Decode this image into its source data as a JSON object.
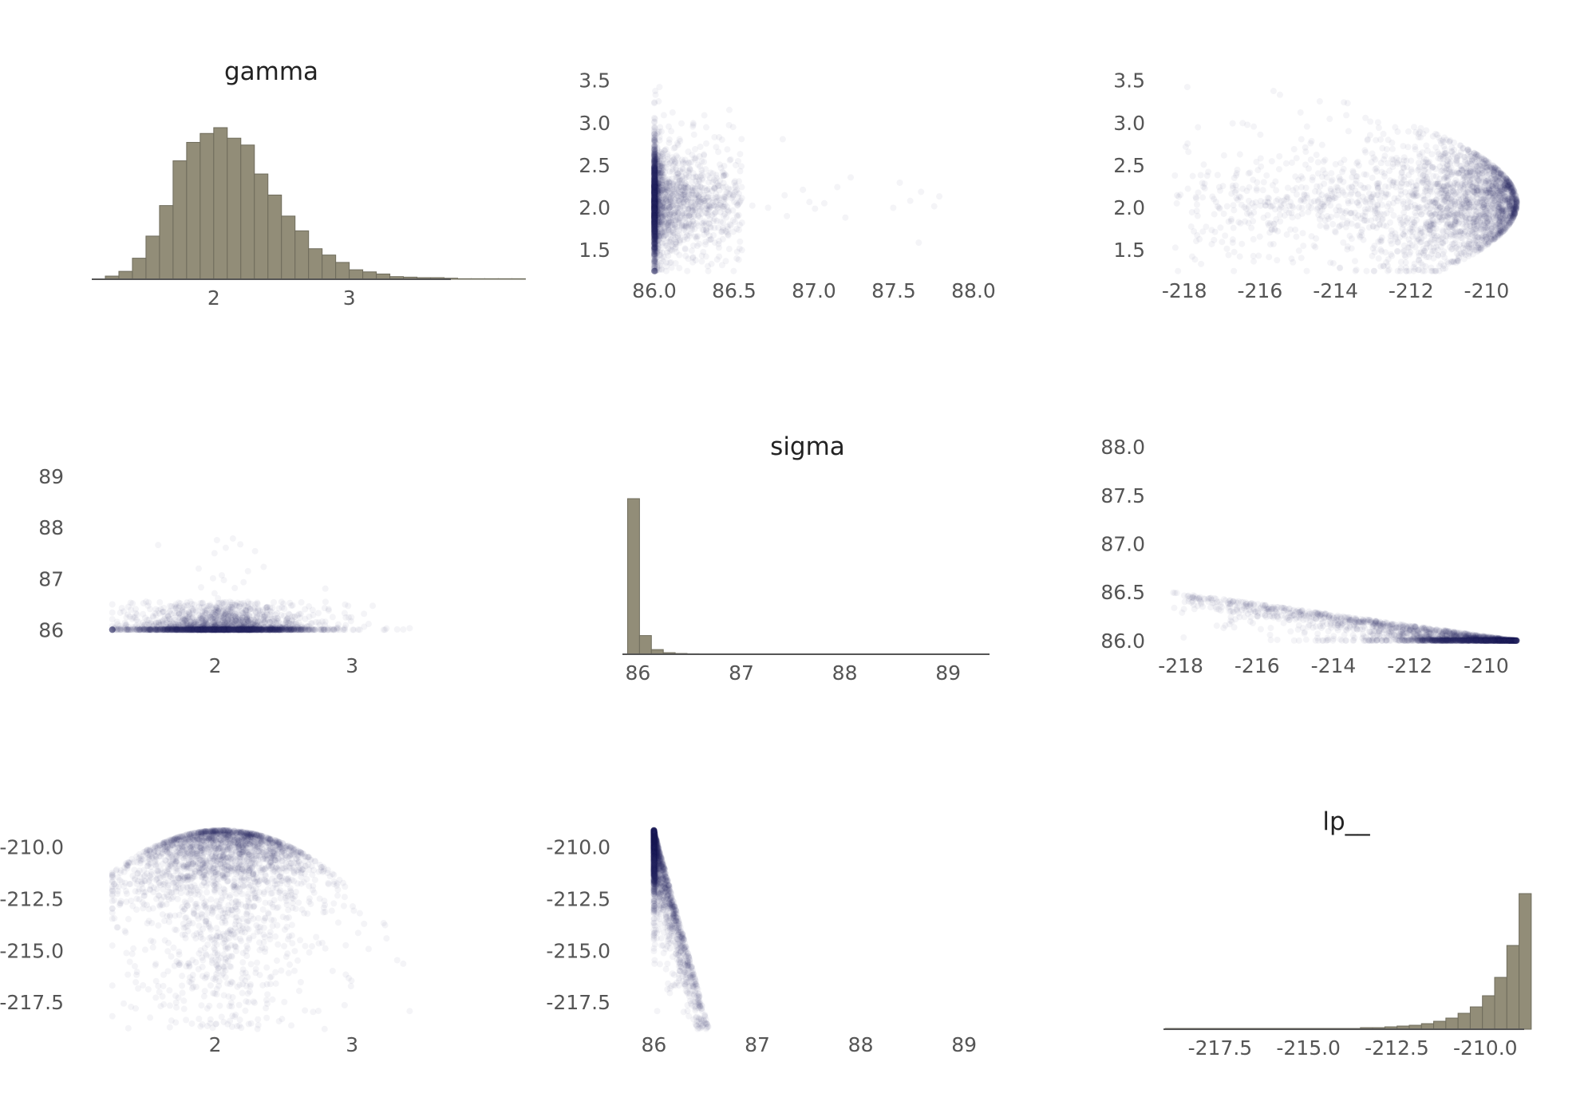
{
  "colors": {
    "hist_fill": "#928d78",
    "hist_edge": "#6f6c5c",
    "point": "#1f2a5a",
    "text": "#555555",
    "title": "#222222"
  },
  "chart_data": [
    {
      "type": "histogram",
      "panel": "gamma",
      "title": "gamma",
      "x_ticks": [
        2,
        3
      ],
      "xlim": [
        1.1,
        3.75
      ],
      "bins": {
        "start": 1.2,
        "width": 0.1,
        "counts": [
          6,
          15,
          40,
          82,
          140,
          225,
          260,
          277,
          288,
          268,
          255,
          200,
          160,
          120,
          92,
          58,
          46,
          32,
          18,
          14,
          10,
          5,
          4,
          3,
          3,
          2,
          1,
          1,
          1,
          1,
          1
        ]
      },
      "ymax": 288,
      "grid": false
    },
    {
      "type": "scatter",
      "panel": "sigma vs gamma",
      "x_ticks": [
        86.0,
        86.5,
        87.0,
        87.5,
        88.0
      ],
      "y_ticks": [
        1.5,
        2.0,
        2.5,
        3.0,
        3.5
      ],
      "xlim": [
        85.9,
        88.2
      ],
      "ylim": [
        1.2,
        3.6
      ],
      "shape": "sigma-gamma",
      "grid": false
    },
    {
      "type": "scatter",
      "panel": "lp__ vs gamma",
      "x_ticks": [
        -218,
        -216,
        -214,
        -212,
        -210
      ],
      "y_ticks": [
        1.5,
        2.0,
        2.5,
        3.0,
        3.5
      ],
      "xlim": [
        -218.3,
        -208.9
      ],
      "ylim": [
        1.2,
        3.6
      ],
      "shape": "lp-gamma",
      "grid": false
    },
    {
      "type": "scatter",
      "panel": "gamma vs sigma",
      "x_ticks": [
        2,
        3
      ],
      "y_ticks": [
        86,
        87,
        88,
        89
      ],
      "xlim": [
        1.1,
        3.75
      ],
      "ylim": [
        85.6,
        89.5
      ],
      "shape": "gamma-sigma",
      "grid": false
    },
    {
      "type": "histogram",
      "panel": "sigma",
      "title": "sigma",
      "x_ticks": [
        86,
        87,
        88,
        89
      ],
      "xlim": [
        85.85,
        89.4
      ],
      "bins": {
        "start": 85.9,
        "width": 0.115,
        "counts": [
          1000,
          120,
          30,
          10,
          5,
          3,
          2,
          2,
          1,
          1,
          1,
          1,
          1,
          1,
          1,
          1,
          1,
          1,
          1,
          1,
          1,
          1,
          1,
          1,
          1,
          1,
          1,
          1,
          1,
          1
        ]
      },
      "ymax": 1000,
      "grid": false
    },
    {
      "type": "scatter",
      "panel": "lp__ vs sigma",
      "x_ticks": [
        -218,
        -216,
        -214,
        -212,
        -210
      ],
      "y_ticks": [
        86.0,
        86.5,
        87.0,
        87.5,
        88.0
      ],
      "xlim": [
        -218.2,
        -208.9
      ],
      "ylim": [
        85.9,
        88.1
      ],
      "shape": "lp-sigma",
      "grid": false
    },
    {
      "type": "scatter",
      "panel": "gamma vs lp__",
      "x_ticks": [
        2,
        3
      ],
      "y_ticks": [
        -210.0,
        -212.5,
        -215.0,
        -217.5
      ],
      "xlim": [
        1.1,
        3.75
      ],
      "ylim": [
        -218.8,
        -208.6
      ],
      "shape": "gamma-lp",
      "grid": false
    },
    {
      "type": "scatter",
      "panel": "sigma vs lp__",
      "x_ticks": [
        86,
        87,
        88,
        89
      ],
      "y_ticks": [
        -210.0,
        -212.5,
        -215.0,
        -217.5
      ],
      "xlim": [
        85.85,
        89.4
      ],
      "ylim": [
        -218.8,
        -208.6
      ],
      "shape": "sigma-lp",
      "grid": false
    },
    {
      "type": "histogram",
      "panel": "lp__",
      "title": "lp__",
      "x_ticks": [
        -217.5,
        -215.0,
        -212.5,
        -210.0
      ],
      "xlim": [
        -219.1,
        -208.9
      ],
      "bins": {
        "start": -219.05,
        "width": 0.345,
        "counts": [
          1,
          1,
          1,
          1,
          1,
          1,
          1,
          1,
          1,
          1,
          1,
          1,
          1,
          1,
          1,
          1,
          2,
          2,
          3,
          4,
          5,
          7,
          10,
          14,
          20,
          28,
          42,
          65,
          105,
          170
        ]
      },
      "ymax": 170,
      "grid": false
    }
  ]
}
